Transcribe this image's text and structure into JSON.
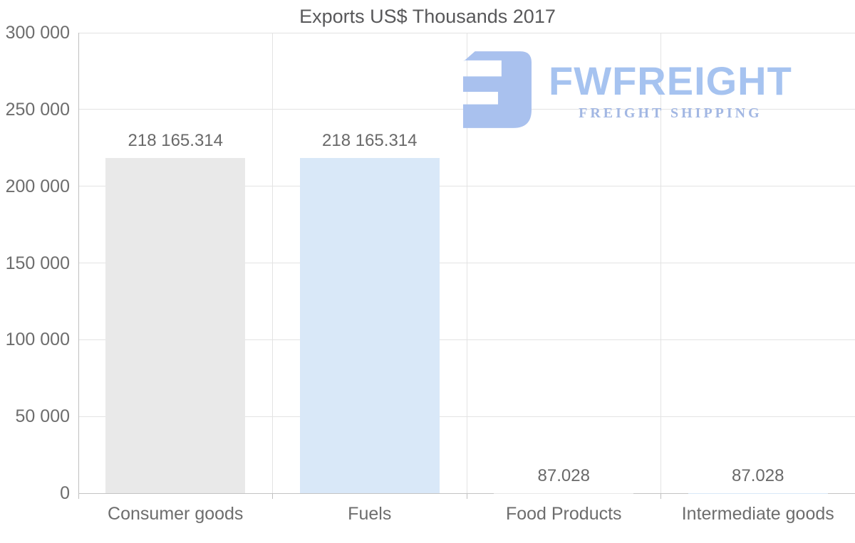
{
  "chart_data": {
    "type": "bar",
    "title": "Exports US$ Thousands 2017",
    "categories": [
      "Consumer goods",
      "Fuels",
      "Food Products",
      "Intermediate goods"
    ],
    "values": [
      218165.314,
      218165.314,
      87.028,
      87.028
    ],
    "value_labels": [
      "218 165.314",
      "218 165.314",
      "87.028",
      "87.028"
    ],
    "bar_colors": [
      "#e9e9e9",
      "#d9e8f8",
      "#e9e9e9",
      "#d9e8f8"
    ],
    "xlabel": "",
    "ylabel": "",
    "ylim": [
      0,
      300000
    ],
    "ytick_interval": 50000,
    "ytick_labels": [
      "0",
      "50 000",
      "100 000",
      "150 000",
      "200 000",
      "250 000",
      "300 000"
    ],
    "grid": "horizontal gridlines + vertical category separators",
    "legend": "none"
  },
  "watermark": {
    "brand": "FWFREIGHT",
    "tagline": "FREIGHT SHIPPING",
    "icon": "fwfreight-mark",
    "brand_color": "#a6c3f0",
    "tagline_color": "#a2b7e3",
    "icon_color": "#a9c1ee"
  },
  "style": {
    "title_color": "#58585a",
    "text_color": "#6d6d6d",
    "gridline_color": "#e3e3e3",
    "axis_color": "#c4c4c4",
    "background": "#ffffff"
  }
}
